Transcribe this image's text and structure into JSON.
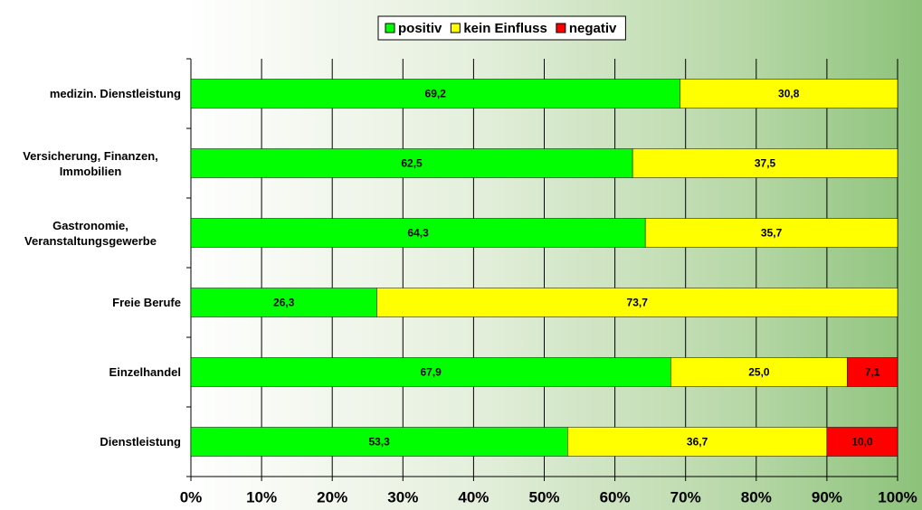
{
  "chart_data": {
    "type": "stacked-bar-horizontal",
    "categories": [
      "medizin. Dienstleistung",
      "Versicherung, Finanzen, Immobilien",
      "Gastronomie, Veranstaltungsgewerbe",
      "Freie Berufe",
      "Einzelhandel",
      "Dienstleistung"
    ],
    "series": [
      {
        "name": "positiv",
        "color": "#00ff00",
        "values": [
          69.2,
          62.5,
          64.3,
          26.3,
          67.9,
          53.3
        ],
        "value_labels": [
          "69,2",
          "62,5",
          "64,3",
          "26,3",
          "67,9",
          "53,3"
        ]
      },
      {
        "name": "kein Einfluss",
        "color": "#ffff00",
        "values": [
          30.8,
          37.5,
          35.7,
          73.7,
          25.0,
          36.7
        ],
        "value_labels": [
          "30,8",
          "37,5",
          "35,7",
          "73,7",
          "25,0",
          "36,7"
        ]
      },
      {
        "name": "negativ",
        "color": "#ff0000",
        "values": [
          null,
          null,
          null,
          null,
          7.1,
          10.0
        ],
        "value_labels": [
          null,
          null,
          null,
          null,
          "7,1",
          "10,0"
        ]
      }
    ],
    "xlim": [
      0,
      100
    ],
    "xticks": [
      {
        "value": 0,
        "label": "0%"
      },
      {
        "value": 10,
        "label": "10%"
      },
      {
        "value": 20,
        "label": "20%"
      },
      {
        "value": 30,
        "label": "30%"
      },
      {
        "value": 40,
        "label": "40%"
      },
      {
        "value": 50,
        "label": "50%"
      },
      {
        "value": 60,
        "label": "60%"
      },
      {
        "value": 70,
        "label": "70%"
      },
      {
        "value": 80,
        "label": "80%"
      },
      {
        "value": 90,
        "label": "90%"
      },
      {
        "value": 100,
        "label": "100%"
      }
    ],
    "grid": true,
    "legend": "top"
  }
}
